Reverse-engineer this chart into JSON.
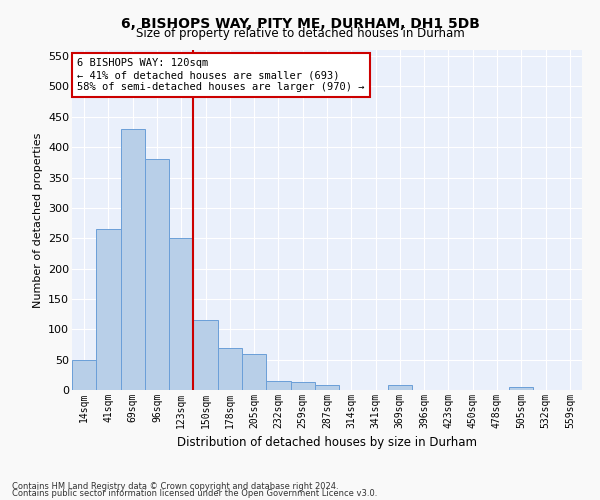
{
  "title1": "6, BISHOPS WAY, PITY ME, DURHAM, DH1 5DB",
  "title2": "Size of property relative to detached houses in Durham",
  "xlabel": "Distribution of detached houses by size in Durham",
  "ylabel": "Number of detached properties",
  "categories": [
    "14sqm",
    "41sqm",
    "69sqm",
    "96sqm",
    "123sqm",
    "150sqm",
    "178sqm",
    "205sqm",
    "232sqm",
    "259sqm",
    "287sqm",
    "314sqm",
    "341sqm",
    "369sqm",
    "396sqm",
    "423sqm",
    "450sqm",
    "478sqm",
    "505sqm",
    "532sqm",
    "559sqm"
  ],
  "values": [
    50,
    265,
    430,
    380,
    250,
    115,
    70,
    60,
    15,
    13,
    9,
    0,
    0,
    9,
    0,
    0,
    0,
    0,
    5,
    0,
    0
  ],
  "bar_color": "#b8cfe8",
  "bar_edge_color": "#6a9fd8",
  "background_color": "#eaf0fb",
  "grid_color": "#ffffff",
  "annotation_text": "6 BISHOPS WAY: 120sqm\n← 41% of detached houses are smaller (693)\n58% of semi-detached houses are larger (970) →",
  "vline_x": 4.5,
  "vline_color": "#cc0000",
  "annotation_box_facecolor": "#ffffff",
  "annotation_box_edge": "#cc0000",
  "footer1": "Contains HM Land Registry data © Crown copyright and database right 2024.",
  "footer2": "Contains public sector information licensed under the Open Government Licence v3.0.",
  "ylim": [
    0,
    560
  ],
  "yticks": [
    0,
    50,
    100,
    150,
    200,
    250,
    300,
    350,
    400,
    450,
    500,
    550
  ],
  "fig_bg": "#f9f9f9"
}
